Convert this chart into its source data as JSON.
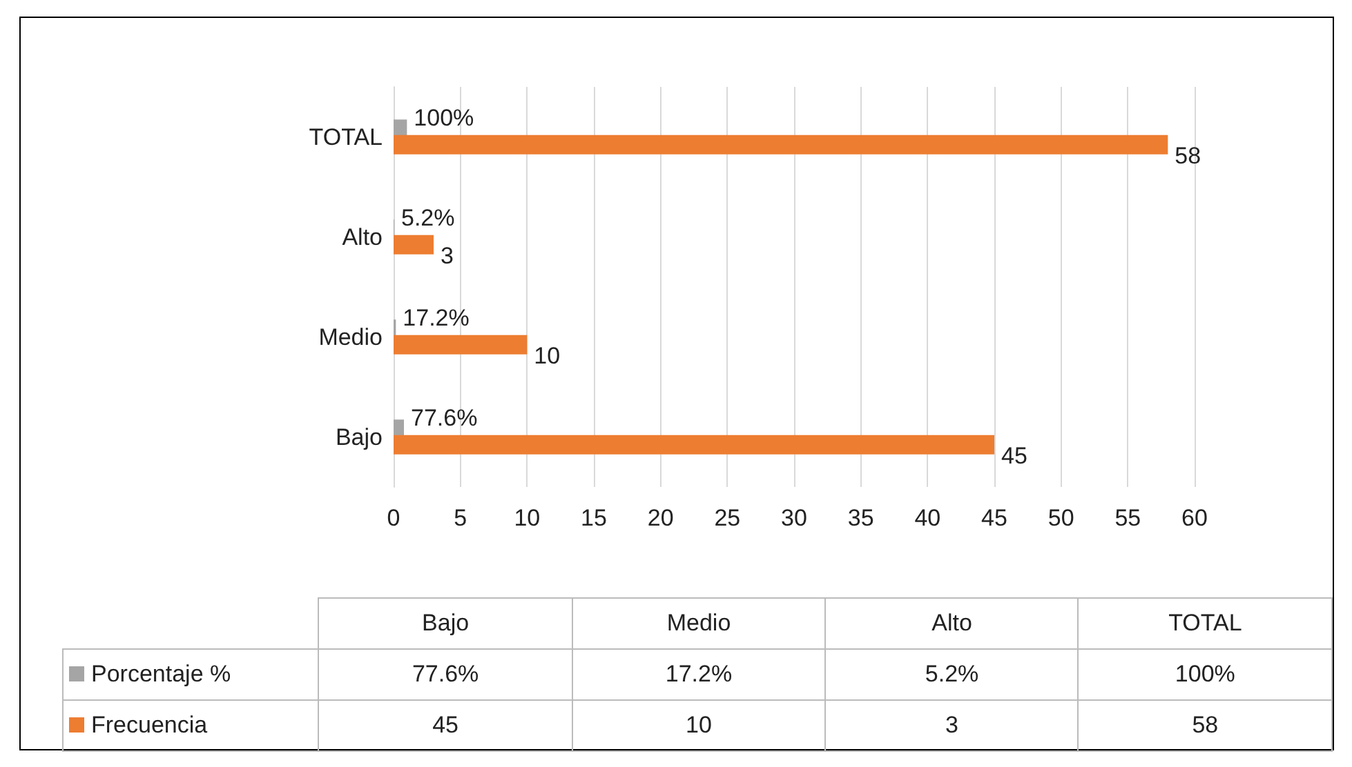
{
  "chart_data": {
    "type": "bar",
    "orientation": "horizontal",
    "categories": [
      "TOTAL",
      "Alto",
      "Medio",
      "Bajo"
    ],
    "series": [
      {
        "name": "Porcentaje %",
        "color": "#a5a5a5",
        "values": [
          1,
          0.052,
          0.172,
          0.776
        ],
        "value_labels": [
          "100%",
          "5.2%",
          "17.2%",
          "77.6%"
        ]
      },
      {
        "name": "Frecuencia",
        "color": "#ed7d31",
        "values": [
          58,
          3,
          10,
          45
        ],
        "value_labels": [
          "58",
          "3",
          "10",
          "45"
        ]
      }
    ],
    "xlim": [
      0,
      60
    ],
    "xticks": [
      0,
      5,
      10,
      15,
      20,
      25,
      30,
      35,
      40,
      45,
      50,
      55,
      60
    ],
    "grid": "x",
    "legend": "bottom"
  }
}
